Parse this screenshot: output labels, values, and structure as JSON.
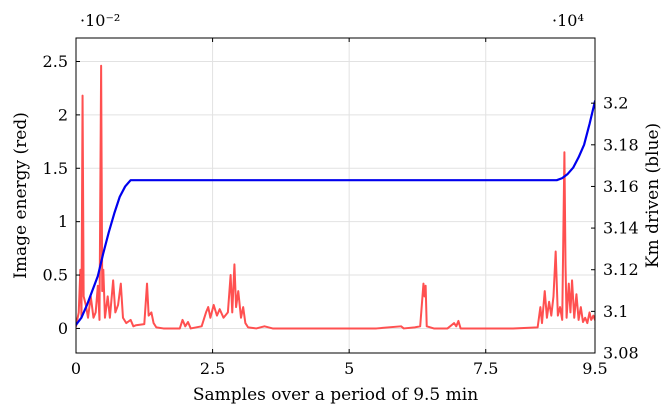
{
  "chart_data": {
    "type": "line",
    "xlabel": "Samples over a period of 9.5 min",
    "ylabel_left": "Image energy (red)",
    "ylabel_right": "Km driven (blue)",
    "left_multiplier": "·10⁻²",
    "right_multiplier": "·10⁴",
    "grid": true,
    "x_axis": {
      "range": [
        0,
        9.5
      ],
      "ticks": [
        0,
        2.5,
        5,
        7.5,
        9.5
      ],
      "tick_labels": [
        "0",
        "2.5",
        "5",
        "7.5",
        "9.5"
      ]
    },
    "y_left_axis": {
      "range": [
        -0.23,
        2.72
      ],
      "ticks": [
        0,
        0.5,
        1,
        1.5,
        2,
        2.5
      ],
      "tick_labels": [
        "0",
        "0.5",
        "1",
        "1.5",
        "2",
        "2.5"
      ]
    },
    "y_right_axis": {
      "range": [
        3.08,
        3.2313
      ],
      "ticks": [
        3.08,
        3.1,
        3.12,
        3.14,
        3.16,
        3.18,
        3.2
      ],
      "tick_labels": [
        "3.08",
        "3.1",
        "3.12",
        "3.14",
        "3.16",
        "3.18",
        "3.2"
      ]
    },
    "series": [
      {
        "axis": "left",
        "color": "#ff5050",
        "points": [
          [
            0,
            0.02
          ],
          [
            0.05,
            0.15
          ],
          [
            0.08,
            0.55
          ],
          [
            0.1,
            0.1
          ],
          [
            0.12,
            2.18
          ],
          [
            0.14,
            0.3
          ],
          [
            0.18,
            0.22
          ],
          [
            0.22,
            0.1
          ],
          [
            0.27,
            0.3
          ],
          [
            0.32,
            0.1
          ],
          [
            0.36,
            0.15
          ],
          [
            0.4,
            0.4
          ],
          [
            0.43,
            0.08
          ],
          [
            0.46,
            2.46
          ],
          [
            0.48,
            0.35
          ],
          [
            0.5,
            0.55
          ],
          [
            0.53,
            0.1
          ],
          [
            0.58,
            0.3
          ],
          [
            0.62,
            0.1
          ],
          [
            0.68,
            0.45
          ],
          [
            0.72,
            0.15
          ],
          [
            0.77,
            0.22
          ],
          [
            0.82,
            0.42
          ],
          [
            0.86,
            0.1
          ],
          [
            0.92,
            0.05
          ],
          [
            1.0,
            0.08
          ],
          [
            1.05,
            0.02
          ],
          [
            1.1,
            0.03
          ],
          [
            1.25,
            0.04
          ],
          [
            1.3,
            0.42
          ],
          [
            1.33,
            0.12
          ],
          [
            1.38,
            0.15
          ],
          [
            1.42,
            0.05
          ],
          [
            1.47,
            0.01
          ],
          [
            1.6,
            0.0
          ],
          [
            1.9,
            0.0
          ],
          [
            1.95,
            0.08
          ],
          [
            2.0,
            0.02
          ],
          [
            2.05,
            0.06
          ],
          [
            2.1,
            0.0
          ],
          [
            2.3,
            0.02
          ],
          [
            2.38,
            0.15
          ],
          [
            2.42,
            0.2
          ],
          [
            2.46,
            0.1
          ],
          [
            2.52,
            0.22
          ],
          [
            2.58,
            0.12
          ],
          [
            2.63,
            0.18
          ],
          [
            2.7,
            0.1
          ],
          [
            2.78,
            0.15
          ],
          [
            2.83,
            0.5
          ],
          [
            2.86,
            0.15
          ],
          [
            2.9,
            0.6
          ],
          [
            2.93,
            0.2
          ],
          [
            2.97,
            0.35
          ],
          [
            3.02,
            0.1
          ],
          [
            3.06,
            0.2
          ],
          [
            3.1,
            0.05
          ],
          [
            3.15,
            0.01
          ],
          [
            3.3,
            0.0
          ],
          [
            3.45,
            0.02
          ],
          [
            3.6,
            0.0
          ],
          [
            4.5,
            0.0
          ],
          [
            5.5,
            0.0
          ],
          [
            5.95,
            0.02
          ],
          [
            6.0,
            0.0
          ],
          [
            6.2,
            0.01
          ],
          [
            6.3,
            0.02
          ],
          [
            6.36,
            0.42
          ],
          [
            6.38,
            0.3
          ],
          [
            6.4,
            0.4
          ],
          [
            6.42,
            0.02
          ],
          [
            6.55,
            0.0
          ],
          [
            6.8,
            0.0
          ],
          [
            6.92,
            0.05
          ],
          [
            6.96,
            0.02
          ],
          [
            7.0,
            0.07
          ],
          [
            7.04,
            0.0
          ],
          [
            7.5,
            0.0
          ],
          [
            8.0,
            0.0
          ],
          [
            8.45,
            0.01
          ],
          [
            8.5,
            0.2
          ],
          [
            8.53,
            0.05
          ],
          [
            8.58,
            0.35
          ],
          [
            8.62,
            0.1
          ],
          [
            8.66,
            0.25
          ],
          [
            8.7,
            0.12
          ],
          [
            8.74,
            0.3
          ],
          [
            8.78,
            0.72
          ],
          [
            8.82,
            0.12
          ],
          [
            8.86,
            0.2
          ],
          [
            8.9,
            0.08
          ],
          [
            8.94,
            1.65
          ],
          [
            8.96,
            0.6
          ],
          [
            8.98,
            0.1
          ],
          [
            9.02,
            0.42
          ],
          [
            9.05,
            0.15
          ],
          [
            9.08,
            0.45
          ],
          [
            9.12,
            0.1
          ],
          [
            9.16,
            0.32
          ],
          [
            9.2,
            0.08
          ],
          [
            9.24,
            0.2
          ],
          [
            9.28,
            0.06
          ],
          [
            9.32,
            0.1
          ],
          [
            9.36,
            0.05
          ],
          [
            9.4,
            0.15
          ],
          [
            9.43,
            0.08
          ],
          [
            9.47,
            0.12
          ],
          [
            9.5,
            0.08
          ]
        ]
      },
      {
        "axis": "right",
        "color": "#0000ee",
        "points": [
          [
            0,
            3.0935
          ],
          [
            0.1,
            3.097
          ],
          [
            0.2,
            3.103
          ],
          [
            0.3,
            3.11
          ],
          [
            0.4,
            3.117
          ],
          [
            0.5,
            3.128
          ],
          [
            0.6,
            3.138
          ],
          [
            0.7,
            3.147
          ],
          [
            0.8,
            3.155
          ],
          [
            0.9,
            3.16
          ],
          [
            1.0,
            3.163
          ],
          [
            1.5,
            3.163
          ],
          [
            3.0,
            3.163
          ],
          [
            5.0,
            3.163
          ],
          [
            7.0,
            3.163
          ],
          [
            8.5,
            3.163
          ],
          [
            8.8,
            3.163
          ],
          [
            8.9,
            3.164
          ],
          [
            9.0,
            3.166
          ],
          [
            9.1,
            3.169
          ],
          [
            9.2,
            3.174
          ],
          [
            9.3,
            3.18
          ],
          [
            9.4,
            3.19
          ],
          [
            9.5,
            3.201
          ]
        ]
      }
    ]
  }
}
